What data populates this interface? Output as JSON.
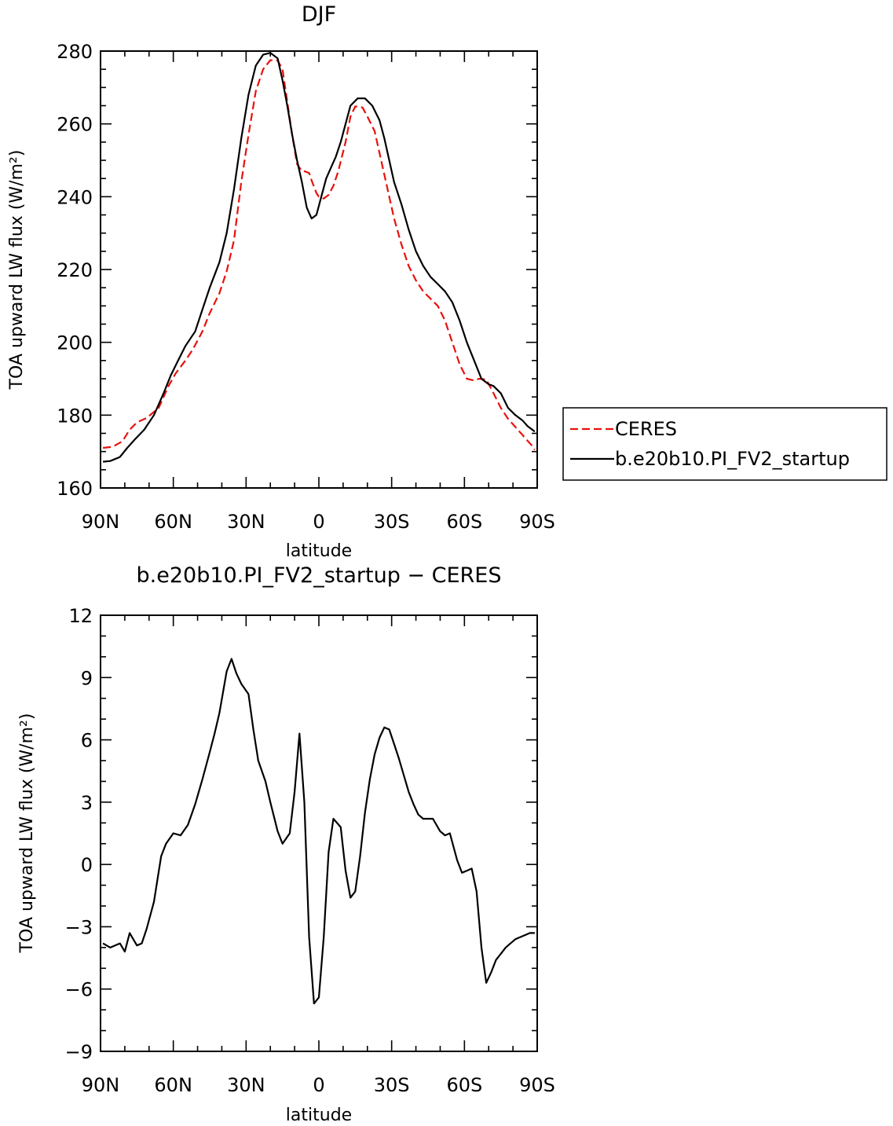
{
  "chart_data": [
    {
      "type": "line",
      "title": "DJF",
      "xlabel": "latitude",
      "ylabel": "TOA upward LW flux (W/m²)",
      "xlim": [
        90,
        -90
      ],
      "ylim": [
        160,
        280
      ],
      "x_ticks": [
        {
          "v": 90,
          "label": "90N"
        },
        {
          "v": 60,
          "label": "60N"
        },
        {
          "v": 30,
          "label": "30N"
        },
        {
          "v": 0,
          "label": "0"
        },
        {
          "v": -30,
          "label": "30S"
        },
        {
          "v": -60,
          "label": "60S"
        },
        {
          "v": -90,
          "label": "90S"
        }
      ],
      "y_ticks": [
        160,
        180,
        200,
        220,
        240,
        260,
        280
      ],
      "legend_position": "right",
      "series": [
        {
          "name": "CERES",
          "color": "#e8120c",
          "style": "dashed",
          "x": [
            89,
            85,
            81,
            78,
            75,
            71,
            66,
            62,
            59,
            55,
            52,
            48,
            45,
            41,
            38,
            35,
            32,
            29,
            26,
            23,
            20,
            17,
            15,
            13,
            11,
            9,
            7,
            6,
            4,
            3,
            1,
            0,
            -2,
            -4,
            -6,
            -8,
            -11,
            -13,
            -15,
            -18,
            -20,
            -23,
            -25,
            -27,
            -29,
            -31,
            -34,
            -37,
            -40,
            -43,
            -46,
            -49,
            -52,
            -55,
            -58,
            -61,
            -64,
            -66,
            -69,
            -72,
            -75,
            -78,
            -80,
            -82,
            -84,
            -86,
            -88,
            -89
          ],
          "y": [
            171,
            171.3,
            172.8,
            176,
            178,
            179.2,
            182,
            188,
            191.5,
            195,
            198,
            203,
            208,
            213.5,
            219.5,
            228,
            244,
            257,
            269,
            275,
            277.5,
            277.4,
            275,
            266,
            257,
            249,
            247,
            247,
            246.5,
            244.5,
            241,
            240,
            239.5,
            240.5,
            243,
            247,
            255,
            262,
            264.8,
            264.5,
            262,
            258,
            252,
            246,
            240,
            234,
            227,
            221,
            217,
            214,
            212,
            210,
            206,
            200,
            194,
            190,
            189.5,
            190,
            189.8,
            186,
            182,
            179,
            177.5,
            176,
            174.5,
            173,
            171.5,
            170.5
          ]
        },
        {
          "name": "b.e20b10.PI_FV2_startup",
          "color": "#000000",
          "style": "solid",
          "x": [
            89,
            86,
            82,
            79,
            76,
            72,
            68,
            64,
            61,
            58,
            55,
            51,
            48,
            45,
            41,
            38,
            35,
            32,
            29,
            26,
            23,
            20,
            17,
            15,
            13,
            11,
            9,
            7,
            5,
            3,
            1,
            -1,
            -3,
            -5,
            -7,
            -9,
            -11,
            -13,
            -16,
            -19,
            -22,
            -25,
            -27,
            -29,
            -31,
            -34,
            -37,
            -40,
            -43,
            -46,
            -49,
            -52,
            -55,
            -58,
            -61,
            -64,
            -67,
            -70,
            -72,
            -75,
            -78,
            -81,
            -84,
            -86,
            -88,
            -89
          ],
          "y": [
            167.2,
            167.4,
            168.5,
            171,
            173.2,
            176,
            180,
            186,
            191,
            195,
            199,
            203,
            209,
            215,
            222,
            230,
            242,
            256,
            268,
            276,
            279,
            279.5,
            278,
            272,
            265,
            257,
            250,
            244,
            237,
            234,
            235,
            240,
            245,
            248,
            251,
            255,
            260,
            265,
            267,
            267,
            265,
            261,
            256,
            250,
            244,
            238,
            231,
            225,
            221,
            218,
            216,
            214,
            211,
            206,
            200,
            195,
            190,
            188.5,
            188,
            186,
            182,
            180,
            178.5,
            177,
            176,
            175.5
          ]
        }
      ]
    },
    {
      "type": "line",
      "title": "b.e20b10.PI_FV2_startup − CERES",
      "xlabel": "latitude",
      "ylabel": "TOA upward LW flux (W/m²)",
      "xlim": [
        90,
        -90
      ],
      "ylim": [
        -9,
        12
      ],
      "x_ticks": [
        {
          "v": 90,
          "label": "90N"
        },
        {
          "v": 60,
          "label": "60N"
        },
        {
          "v": 30,
          "label": "30N"
        },
        {
          "v": 0,
          "label": "0"
        },
        {
          "v": -30,
          "label": "30S"
        },
        {
          "v": -60,
          "label": "60S"
        },
        {
          "v": -90,
          "label": "90S"
        }
      ],
      "y_ticks": [
        -9,
        -6,
        -3,
        0,
        3,
        6,
        9,
        12
      ],
      "series": [
        {
          "color": "#000000",
          "style": "solid",
          "x": [
            89,
            86,
            84,
            82,
            80,
            78,
            75,
            73,
            71,
            68,
            65,
            63,
            60,
            57,
            54,
            51,
            48,
            45,
            43,
            41,
            38,
            36,
            34,
            32,
            29,
            27,
            25,
            22,
            20,
            17,
            15,
            12,
            10,
            8,
            6,
            4,
            2,
            0,
            -2,
            -4,
            -6,
            -9,
            -11,
            -13,
            -15,
            -17,
            -19,
            -21,
            -23,
            -25,
            -27,
            -29,
            -31,
            -33,
            -35,
            -37,
            -39,
            -41,
            -43,
            -45,
            -47,
            -50,
            -52,
            -54,
            -57,
            -59,
            -61,
            -63,
            -65,
            -67,
            -69,
            -71,
            -73,
            -75,
            -77,
            -79,
            -81,
            -83,
            -85,
            -87,
            -89
          ],
          "y": [
            -3.8,
            -4.0,
            -3.9,
            -3.8,
            -4.2,
            -3.3,
            -3.9,
            -3.8,
            -3.1,
            -1.8,
            0.4,
            1.0,
            1.5,
            1.4,
            1.9,
            2.9,
            4.1,
            5.4,
            6.3,
            7.3,
            9.3,
            9.9,
            9.2,
            8.7,
            8.2,
            6.5,
            5.0,
            4.0,
            3.0,
            1.6,
            1.0,
            1.5,
            3.5,
            6.3,
            3.0,
            -3.5,
            -6.7,
            -6.4,
            -3.5,
            0.6,
            2.2,
            1.8,
            -0.3,
            -1.6,
            -1.3,
            0.4,
            2.5,
            4.1,
            5.3,
            6.1,
            6.6,
            6.5,
            5.8,
            5.1,
            4.3,
            3.5,
            2.9,
            2.4,
            2.2,
            2.2,
            2.2,
            1.6,
            1.4,
            1.5,
            0.2,
            -0.4,
            -0.3,
            -0.2,
            -1.3,
            -4.0,
            -5.7,
            -5.2,
            -4.6,
            -4.3,
            -4.0,
            -3.8,
            -3.6,
            -3.5,
            -3.4,
            -3.3,
            -3.3
          ]
        }
      ]
    }
  ]
}
